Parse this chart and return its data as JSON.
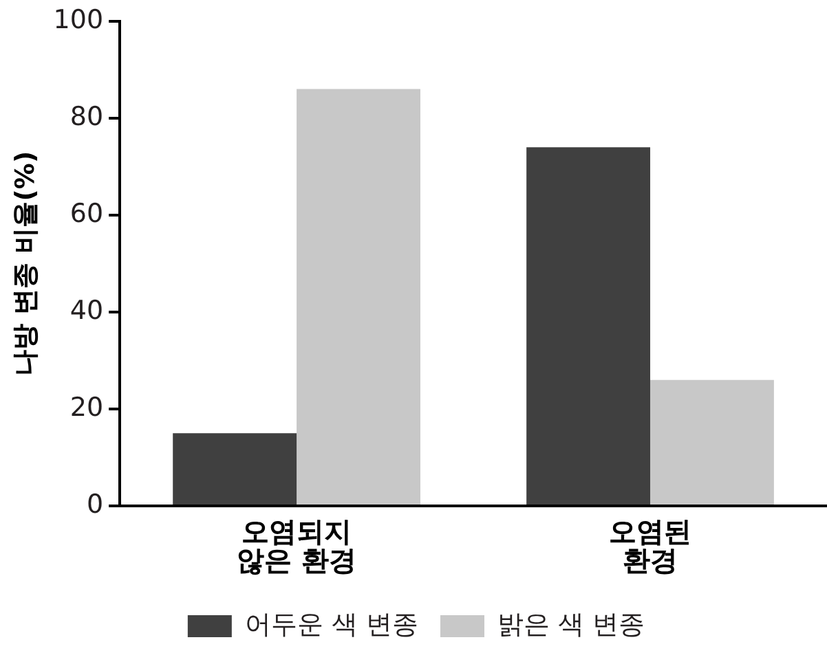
{
  "chart_data": {
    "type": "bar",
    "ylabel": "나방 변종 비율(%)",
    "categories": [
      "오염되지 않은 환경",
      "오염된 환경"
    ],
    "series": [
      {
        "name": "어두운 색 변종",
        "color": "#404040",
        "values": [
          15,
          74
        ]
      },
      {
        "name": "밝은 색 변종",
        "color": "#c8c8c8",
        "values": [
          86,
          26
        ]
      }
    ],
    "ylim": [
      0,
      100
    ],
    "yticks": [
      0,
      20,
      40,
      60,
      80,
      100
    ],
    "grid": false,
    "legend": "bottom"
  }
}
